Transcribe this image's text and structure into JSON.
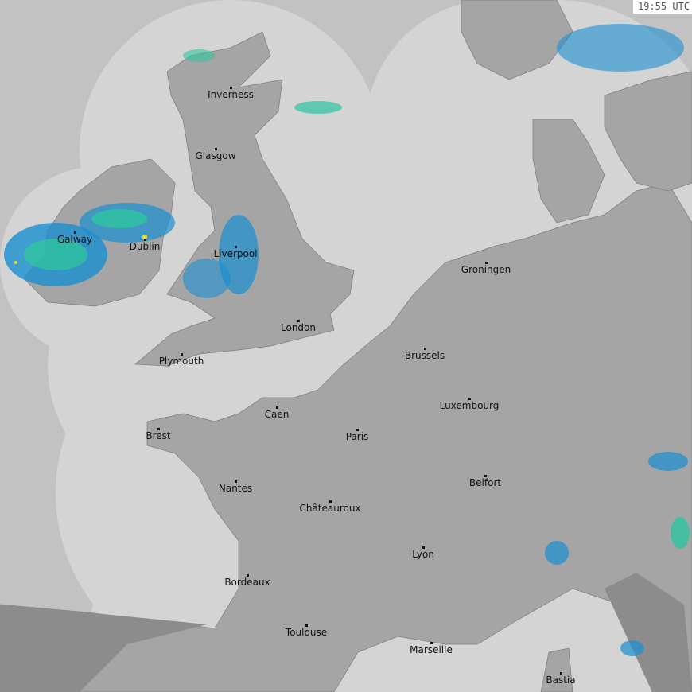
{
  "timestamp": "19:55 UTC",
  "colors": {
    "sea_outside_coverage": "#c2c2c2",
    "sea_in_coverage": "#d4d4d4",
    "land": "#a5a5a5",
    "land_outside_coverage": "#8c8c8c",
    "rain_light": "#1a8fd0",
    "rain_moderate": "#2ec4a0",
    "rain_heavy": "#e8e020"
  },
  "cities": [
    {
      "name": "Inverness"
    },
    {
      "name": "Glasgow"
    },
    {
      "name": "Galway"
    },
    {
      "name": "Dublin"
    },
    {
      "name": "Liverpool"
    },
    {
      "name": "London"
    },
    {
      "name": "Plymouth"
    },
    {
      "name": "Groningen"
    },
    {
      "name": "Brussels"
    },
    {
      "name": "Luxembourg"
    },
    {
      "name": "Caen"
    },
    {
      "name": "Paris"
    },
    {
      "name": "Brest"
    },
    {
      "name": "Belfort"
    },
    {
      "name": "Nantes"
    },
    {
      "name": "Châteauroux"
    },
    {
      "name": "Lyon"
    },
    {
      "name": "Bordeaux"
    },
    {
      "name": "Toulouse"
    },
    {
      "name": "Marseille"
    },
    {
      "name": "Bastia"
    }
  ]
}
